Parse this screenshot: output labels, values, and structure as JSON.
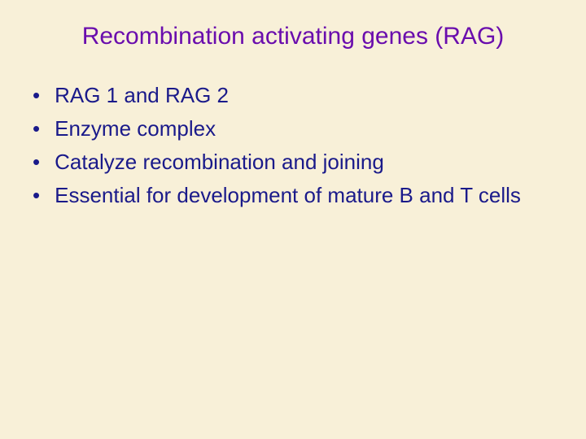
{
  "slide": {
    "title": "Recombination activating genes (RAG)",
    "bullets": [
      "RAG 1 and RAG 2",
      "Enzyme complex",
      "Catalyze recombination and joining",
      "Essential for development of mature B and T cells"
    ]
  },
  "colors": {
    "background": "#f8f0d8",
    "title": "#6a0dad",
    "body": "#1a1a8a"
  },
  "typography": {
    "title_fontsize": 30,
    "body_fontsize": 26,
    "font_family": "Arial"
  }
}
